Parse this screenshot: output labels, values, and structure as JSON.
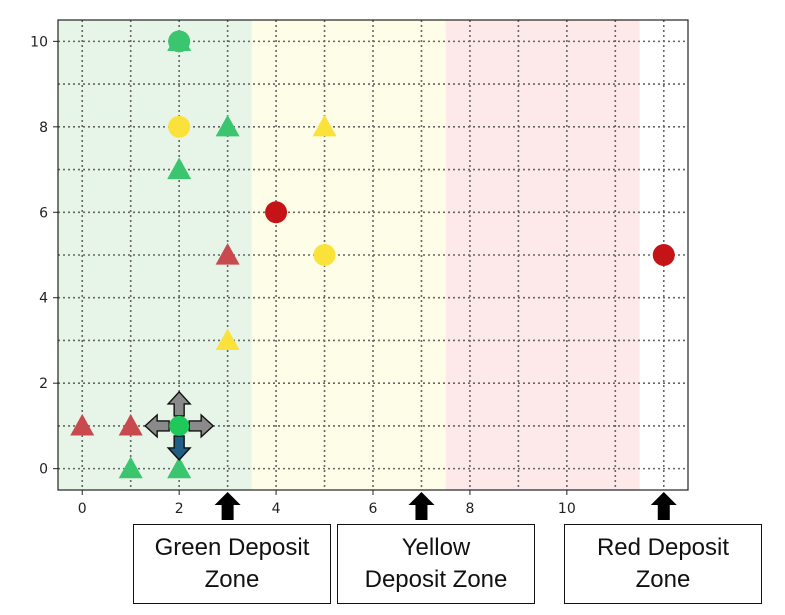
{
  "chart_data": {
    "type": "scatter",
    "title": "",
    "xlabel": "",
    "ylabel": "",
    "xlim": [
      -0.5,
      12.5
    ],
    "ylim": [
      -0.5,
      10.5
    ],
    "x_ticks": [
      0,
      2,
      4,
      6,
      8,
      10
    ],
    "y_ticks": [
      0,
      2,
      4,
      6,
      8,
      10
    ],
    "grid": "dotted, every 1 unit",
    "zones": [
      {
        "name": "green",
        "x_range": [
          -0.5,
          3.5
        ],
        "color": "#e6f5e8"
      },
      {
        "name": "yellow",
        "x_range": [
          3.5,
          7.5
        ],
        "color": "#fdfde8"
      },
      {
        "name": "red",
        "x_range": [
          7.5,
          11.5
        ],
        "color": "#fde8ea"
      }
    ],
    "circles": [
      {
        "x": 2,
        "y": 10,
        "color": "green"
      },
      {
        "x": 2,
        "y": 8,
        "color": "yellow"
      },
      {
        "x": 4,
        "y": 6,
        "color": "red"
      },
      {
        "x": 5,
        "y": 5,
        "color": "yellow"
      },
      {
        "x": 12,
        "y": 5,
        "color": "red"
      }
    ],
    "triangles": [
      {
        "x": 2,
        "y": 10,
        "color": "green"
      },
      {
        "x": 3,
        "y": 8,
        "color": "green"
      },
      {
        "x": 5,
        "y": 8,
        "color": "yellow"
      },
      {
        "x": 2,
        "y": 7,
        "color": "green"
      },
      {
        "x": 3,
        "y": 5,
        "color": "red"
      },
      {
        "x": 3,
        "y": 3,
        "color": "yellow"
      },
      {
        "x": 0,
        "y": 1,
        "color": "red"
      },
      {
        "x": 1,
        "y": 1,
        "color": "red"
      },
      {
        "x": 1,
        "y": 0,
        "color": "green"
      },
      {
        "x": 2,
        "y": 0,
        "color": "green"
      }
    ],
    "agent": {
      "x": 2,
      "y": 1,
      "color": "green",
      "arrows": [
        "up",
        "left",
        "right",
        "down"
      ],
      "highlighted_arrow": "down"
    },
    "zone_markers": [
      {
        "x": 3,
        "label": "Green Deposit\nZone"
      },
      {
        "x": 7,
        "label": "Yellow\nDeposit Zone"
      },
      {
        "x": 12,
        "label": "Red Deposit\nZone"
      }
    ]
  },
  "colors": {
    "green": "#3cc56f",
    "green_agent": "#1ec95a",
    "yellow": "#fbe23a",
    "red": "#c41418",
    "red_triangle": "#c84a4f",
    "arrow_gray": "#8a8a8a",
    "arrow_blue": "#1f5f86"
  },
  "labels": {
    "green_zone": "Green Deposit\nZone",
    "yellow_zone": "Yellow\nDeposit Zone",
    "red_zone": "Red Deposit\nZone"
  }
}
